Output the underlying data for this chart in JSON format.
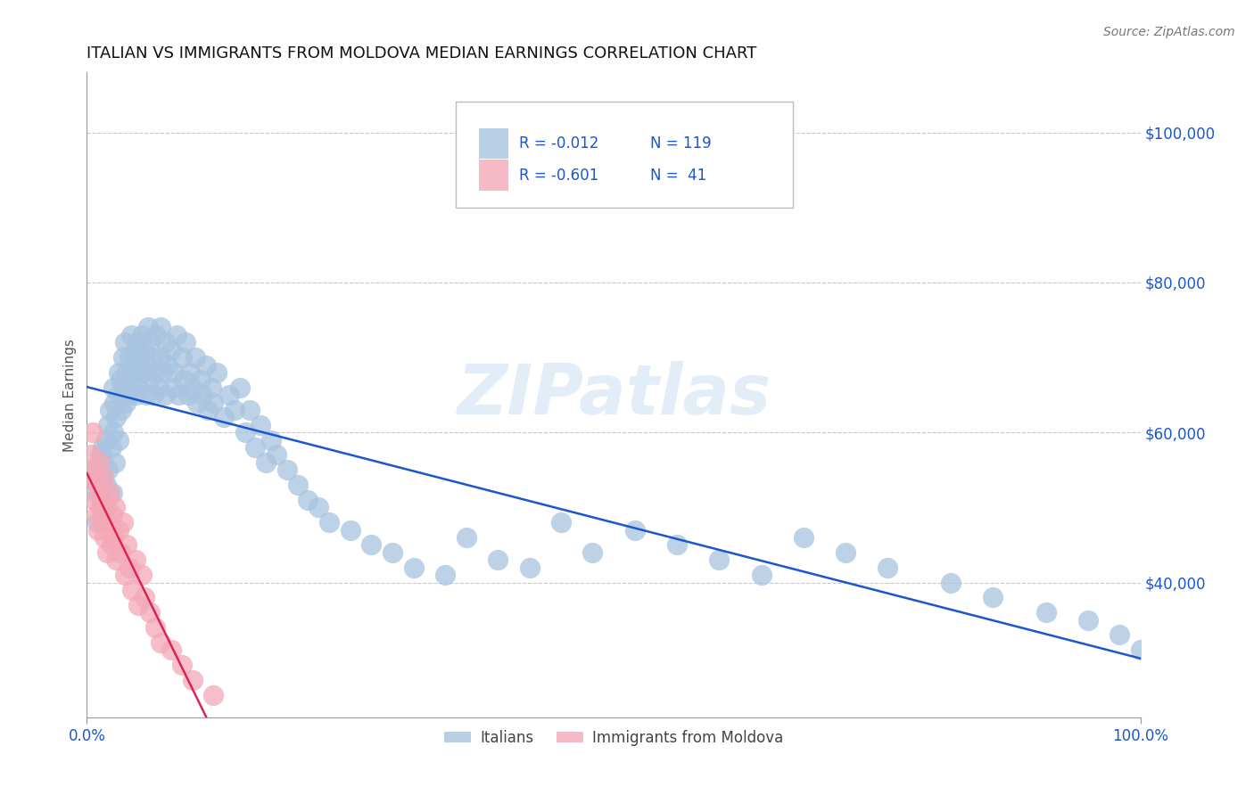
{
  "title": "ITALIAN VS IMMIGRANTS FROM MOLDOVA MEDIAN EARNINGS CORRELATION CHART",
  "source": "Source: ZipAtlas.com",
  "ylabel": "Median Earnings",
  "xlim": [
    0.0,
    1.0
  ],
  "ylim": [
    22000,
    108000
  ],
  "yticks": [
    40000,
    60000,
    80000,
    100000
  ],
  "ytick_labels": [
    "$40,000",
    "$60,000",
    "$80,000",
    "$100,000"
  ],
  "xtick_labels": [
    "0.0%",
    "100.0%"
  ],
  "bg_color": "#ffffff",
  "grid_color": "#c8c8c8",
  "watermark": "ZIPatlas",
  "legend_r1": "R = -0.012",
  "legend_n1": "N = 119",
  "legend_r2": "R = -0.601",
  "legend_n2": "N =  41",
  "blue_color": "#a8c4e0",
  "pink_color": "#f4a8b8",
  "line_blue": "#1a56cc",
  "line_pink": "#dd2255",
  "italians_label": "Italians",
  "moldova_label": "Immigrants from Moldova",
  "title_color": "#111111",
  "title_fontsize": 13,
  "axis_label_color": "#555555",
  "tick_color": "#1a56cc",
  "source_color": "#777777",
  "italians_x": [
    0.005,
    0.008,
    0.01,
    0.012,
    0.013,
    0.015,
    0.015,
    0.016,
    0.018,
    0.018,
    0.02,
    0.02,
    0.022,
    0.023,
    0.024,
    0.025,
    0.025,
    0.026,
    0.027,
    0.028,
    0.03,
    0.03,
    0.03,
    0.032,
    0.033,
    0.034,
    0.035,
    0.036,
    0.037,
    0.038,
    0.04,
    0.04,
    0.042,
    0.043,
    0.044,
    0.045,
    0.046,
    0.047,
    0.048,
    0.05,
    0.05,
    0.052,
    0.053,
    0.055,
    0.056,
    0.057,
    0.058,
    0.06,
    0.06,
    0.062,
    0.063,
    0.065,
    0.066,
    0.068,
    0.07,
    0.07,
    0.072,
    0.074,
    0.075,
    0.077,
    0.08,
    0.082,
    0.083,
    0.085,
    0.087,
    0.09,
    0.092,
    0.094,
    0.096,
    0.098,
    0.1,
    0.103,
    0.105,
    0.108,
    0.11,
    0.113,
    0.115,
    0.118,
    0.12,
    0.123,
    0.13,
    0.135,
    0.14,
    0.145,
    0.15,
    0.155,
    0.16,
    0.165,
    0.17,
    0.175,
    0.18,
    0.19,
    0.2,
    0.21,
    0.22,
    0.23,
    0.25,
    0.27,
    0.29,
    0.31,
    0.34,
    0.36,
    0.39,
    0.42,
    0.45,
    0.48,
    0.52,
    0.56,
    0.6,
    0.64,
    0.68,
    0.72,
    0.76,
    0.82,
    0.86,
    0.91,
    0.95,
    0.98,
    1.0
  ],
  "italians_y": [
    55000,
    52000,
    48000,
    57000,
    50000,
    54000,
    58000,
    56000,
    53000,
    59000,
    61000,
    55000,
    63000,
    58000,
    52000,
    66000,
    60000,
    64000,
    56000,
    62000,
    68000,
    65000,
    59000,
    67000,
    63000,
    70000,
    66000,
    72000,
    64000,
    68000,
    70000,
    65000,
    73000,
    67000,
    69000,
    71000,
    65000,
    68000,
    72000,
    70000,
    66000,
    73000,
    68000,
    71000,
    65000,
    69000,
    74000,
    67000,
    72000,
    70000,
    65000,
    68000,
    73000,
    66000,
    70000,
    74000,
    68000,
    65000,
    72000,
    69000,
    71000,
    66000,
    68000,
    73000,
    65000,
    70000,
    67000,
    72000,
    65000,
    68000,
    66000,
    70000,
    64000,
    67000,
    65000,
    69000,
    63000,
    66000,
    64000,
    68000,
    62000,
    65000,
    63000,
    66000,
    60000,
    63000,
    58000,
    61000,
    56000,
    59000,
    57000,
    55000,
    53000,
    51000,
    50000,
    48000,
    47000,
    45000,
    44000,
    42000,
    41000,
    46000,
    43000,
    42000,
    48000,
    44000,
    47000,
    45000,
    43000,
    41000,
    46000,
    44000,
    42000,
    40000,
    38000,
    36000,
    35000,
    33000,
    31000
  ],
  "moldova_x": [
    0.004,
    0.005,
    0.006,
    0.007,
    0.008,
    0.009,
    0.01,
    0.011,
    0.012,
    0.013,
    0.014,
    0.015,
    0.016,
    0.017,
    0.018,
    0.019,
    0.02,
    0.022,
    0.023,
    0.024,
    0.025,
    0.027,
    0.028,
    0.03,
    0.032,
    0.034,
    0.036,
    0.038,
    0.04,
    0.043,
    0.046,
    0.049,
    0.052,
    0.055,
    0.06,
    0.065,
    0.07,
    0.08,
    0.09,
    0.1,
    0.12
  ],
  "moldova_y": [
    57000,
    54000,
    60000,
    51000,
    55000,
    49000,
    53000,
    47000,
    56000,
    50000,
    52000,
    48000,
    54000,
    46000,
    50000,
    44000,
    48000,
    52000,
    45000,
    49000,
    46000,
    50000,
    43000,
    47000,
    44000,
    48000,
    41000,
    45000,
    42000,
    39000,
    43000,
    37000,
    41000,
    38000,
    36000,
    34000,
    32000,
    31000,
    29000,
    27000,
    25000
  ]
}
